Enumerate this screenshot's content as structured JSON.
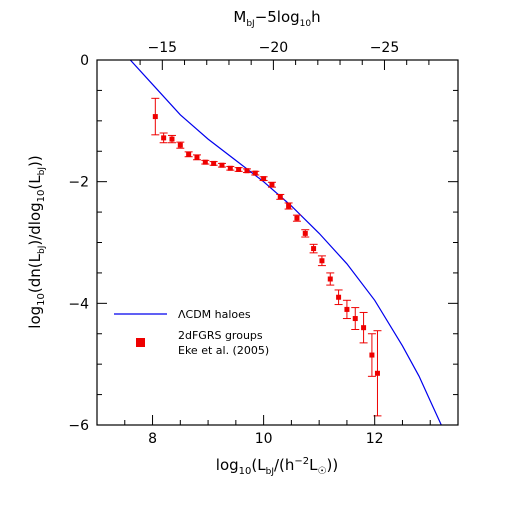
{
  "chart_data": {
    "type": "scatter",
    "title": "",
    "xlabel": "log₁₀(L_bJ/(h⁻²L☉))",
    "ylabel": "log₁₀(dn(L_bJ)/dlog₁₀(L_bJ))",
    "x2label": "M_bJ−5log₁₀h",
    "xlim": [
      7.0,
      13.5
    ],
    "ylim": [
      -6,
      0
    ],
    "x_ticks": [
      "8",
      "10",
      "12"
    ],
    "y_ticks": [
      "0",
      "−2",
      "−4",
      "−6"
    ],
    "top_ticks": [
      "−15",
      "−20",
      "−25"
    ],
    "top_tick_magnitudes": [
      -15,
      -20,
      -25
    ],
    "grid": false,
    "legend_position": "bottom-left",
    "colors": {
      "model": "#0000ee",
      "data": "#ee0000"
    },
    "series": [
      {
        "name": "ΛCDM haloes",
        "style": "line",
        "x": [
          7.6,
          8.0,
          8.5,
          9.0,
          9.5,
          10.0,
          10.5,
          11.0,
          11.5,
          12.0,
          12.5,
          12.8,
          13.0,
          13.2
        ],
        "y": [
          0.0,
          -0.4,
          -0.9,
          -1.3,
          -1.65,
          -2.0,
          -2.4,
          -2.85,
          -3.35,
          -3.95,
          -4.7,
          -5.2,
          -5.6,
          -6.0
        ]
      },
      {
        "name": "2dFGRS groups",
        "name_line2": "Eke et al. (2005)",
        "style": "errorbar",
        "x": [
          8.05,
          8.2,
          8.35,
          8.5,
          8.65,
          8.8,
          8.95,
          9.1,
          9.25,
          9.4,
          9.55,
          9.7,
          9.85,
          10.0,
          10.15,
          10.3,
          10.45,
          10.6,
          10.75,
          10.9,
          11.05,
          11.2,
          11.35,
          11.5,
          11.65,
          11.8,
          11.95,
          12.05
        ],
        "y": [
          -0.93,
          -1.28,
          -1.3,
          -1.4,
          -1.55,
          -1.6,
          -1.68,
          -1.7,
          -1.73,
          -1.78,
          -1.8,
          -1.82,
          -1.86,
          -1.95,
          -2.05,
          -2.25,
          -2.4,
          -2.6,
          -2.85,
          -3.1,
          -3.3,
          -3.6,
          -3.9,
          -4.1,
          -4.25,
          -4.4,
          -4.85,
          -5.15
        ],
        "yerr": [
          0.3,
          0.08,
          0.06,
          0.05,
          0.04,
          0.04,
          0.03,
          0.03,
          0.03,
          0.03,
          0.03,
          0.03,
          0.03,
          0.03,
          0.04,
          0.04,
          0.05,
          0.05,
          0.06,
          0.07,
          0.08,
          0.1,
          0.12,
          0.15,
          0.18,
          0.25,
          0.35,
          0.7
        ]
      }
    ]
  }
}
